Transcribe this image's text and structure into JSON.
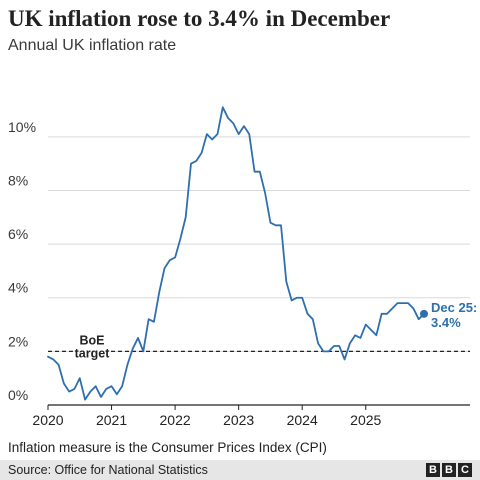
{
  "title": "UK inflation rose to 3.4% in December",
  "subtitle": "Annual UK inflation rate",
  "footnote": "Inflation measure is the Consumer Prices Index (CPI)",
  "source": "Source: Office for National Statistics",
  "logo": [
    "B",
    "B",
    "C"
  ],
  "colors": {
    "line": "#2f6fae",
    "grid": "#d9d9d9",
    "axis": "#222222",
    "target": "#222222"
  },
  "chart_data": {
    "type": "line",
    "title": "UK inflation rose to 3.4% in December",
    "subtitle": "Annual UK inflation rate",
    "xlim": [
      "2020-01",
      "2025-12"
    ],
    "ylim": [
      0,
      11
    ],
    "y_ticks": [
      0,
      2,
      4,
      6,
      8,
      10
    ],
    "y_tick_labels": [
      "0%",
      "2%",
      "4%",
      "6%",
      "8%",
      "10%"
    ],
    "x_ticks": [
      "2020-01",
      "2021-01",
      "2022-01",
      "2023-01",
      "2024-01",
      "2025-01"
    ],
    "x_tick_labels": [
      "2020",
      "2021",
      "2022",
      "2023",
      "2024",
      "2025"
    ],
    "grid": "horizontal",
    "series": [
      {
        "x": [
          "2020-01",
          "2020-02",
          "2020-03",
          "2020-04",
          "2020-05",
          "2020-06",
          "2020-07",
          "2020-08",
          "2020-09",
          "2020-10",
          "2020-11",
          "2020-12",
          "2021-01",
          "2021-02",
          "2021-03",
          "2021-04",
          "2021-05",
          "2021-06",
          "2021-07",
          "2021-08",
          "2021-09",
          "2021-10",
          "2021-11",
          "2021-12",
          "2022-01",
          "2022-02",
          "2022-03",
          "2022-04",
          "2022-05",
          "2022-06",
          "2022-07",
          "2022-08",
          "2022-09",
          "2022-10",
          "2022-11",
          "2022-12",
          "2023-01",
          "2023-02",
          "2023-03",
          "2023-04",
          "2023-05",
          "2023-06",
          "2023-07",
          "2023-08",
          "2023-09",
          "2023-10",
          "2023-11",
          "2023-12",
          "2024-01",
          "2024-02",
          "2024-03",
          "2024-04",
          "2024-05",
          "2024-06",
          "2024-07",
          "2024-08",
          "2024-09",
          "2024-10",
          "2024-11",
          "2024-12",
          "2025-01",
          "2025-02",
          "2025-03",
          "2025-04",
          "2025-05",
          "2025-06",
          "2025-07",
          "2025-08",
          "2025-09",
          "2025-10",
          "2025-11",
          "2025-12"
        ],
        "values": [
          1.8,
          1.7,
          1.5,
          0.8,
          0.5,
          0.6,
          1.0,
          0.2,
          0.5,
          0.7,
          0.3,
          0.6,
          0.7,
          0.4,
          0.7,
          1.5,
          2.1,
          2.5,
          2.0,
          3.2,
          3.1,
          4.2,
          5.1,
          5.4,
          5.5,
          6.2,
          7.0,
          9.0,
          9.1,
          9.4,
          10.1,
          9.9,
          10.1,
          11.1,
          10.7,
          10.5,
          10.1,
          10.4,
          10.1,
          8.7,
          8.7,
          7.9,
          6.8,
          6.7,
          6.7,
          4.6,
          3.9,
          4.0,
          4.0,
          3.4,
          3.2,
          2.3,
          2.0,
          2.0,
          2.2,
          2.2,
          1.7,
          2.3,
          2.6,
          2.5,
          3.0,
          2.8,
          2.6,
          3.4,
          3.4,
          3.6,
          3.8,
          3.8,
          3.8,
          3.6,
          3.2,
          3.4
        ]
      }
    ],
    "annotations": {
      "target_value": 2,
      "target_label": [
        "BoE",
        "target"
      ],
      "end_label": [
        "Dec 25:",
        "3.4%"
      ]
    }
  }
}
